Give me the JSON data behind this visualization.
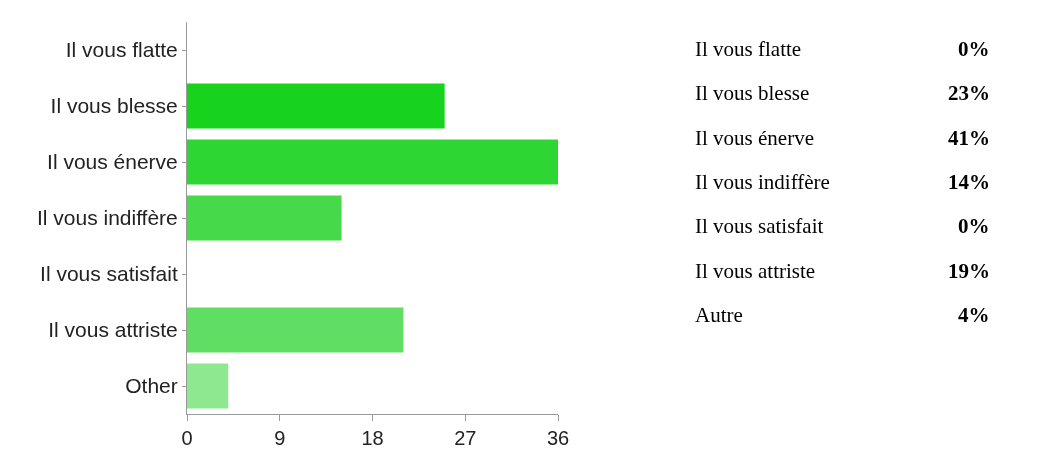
{
  "chart_data": [
    {
      "type": "bar",
      "orientation": "horizontal",
      "categories": [
        "Il vous flatte",
        "Il vous blesse",
        "Il vous énerve",
        "Il vous indiffère",
        "Il vous satisfait",
        "Il vous attriste",
        "Other"
      ],
      "values": [
        0,
        25,
        36,
        15,
        0,
        21,
        4
      ],
      "colors": [
        "#0ccf12",
        "#17d31d",
        "#2ed634",
        "#46da4b",
        "#52dc56",
        "#60de64",
        "#8ee88f"
      ],
      "xlim": [
        0,
        36
      ],
      "xticks": [
        0,
        9,
        18,
        27,
        36
      ]
    },
    {
      "type": "other",
      "categories": [
        "Il vous flatte",
        "Il vous blesse",
        "Il vous énerve",
        "Il vous indiffère",
        "Il vous satisfait",
        "Il vous attriste",
        "Autre"
      ],
      "values": [
        0,
        23,
        41,
        14,
        0,
        19,
        4
      ],
      "value_labels": [
        "0%",
        "23%",
        "41%",
        "14%",
        "0%",
        "19%",
        "4%"
      ]
    }
  ]
}
